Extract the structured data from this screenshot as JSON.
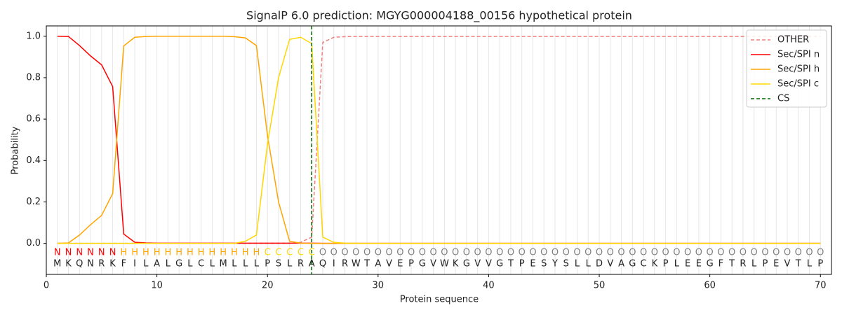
{
  "chart_data": {
    "type": "line",
    "title": "SignalP 6.0 prediction: MGYG000004188_00156 hypothetical protein",
    "xlabel": "Protein sequence",
    "ylabel": "Probability",
    "x": [
      1,
      2,
      3,
      4,
      5,
      6,
      7,
      8,
      9,
      10,
      11,
      12,
      13,
      14,
      15,
      16,
      17,
      18,
      19,
      20,
      21,
      22,
      23,
      24,
      25,
      26,
      27,
      28,
      29,
      30,
      31,
      32,
      33,
      34,
      35,
      36,
      37,
      38,
      39,
      40,
      41,
      42,
      43,
      44,
      45,
      46,
      47,
      48,
      49,
      50,
      51,
      52,
      53,
      54,
      55,
      56,
      57,
      58,
      59,
      60,
      61,
      62,
      63,
      64,
      65,
      66,
      67,
      68,
      69,
      70
    ],
    "sequence": [
      "M",
      "K",
      "Q",
      "N",
      "R",
      "K",
      "F",
      "I",
      "L",
      "A",
      "L",
      "G",
      "L",
      "C",
      "L",
      "M",
      "L",
      "L",
      "L",
      "P",
      "S",
      "L",
      "R",
      "A",
      "Q",
      "I",
      "R",
      "W",
      "T",
      "A",
      "V",
      "E",
      "P",
      "G",
      "V",
      "W",
      "K",
      "G",
      "V",
      "V",
      "G",
      "T",
      "P",
      "E",
      "S",
      "Y",
      "S",
      "L",
      "L",
      "D",
      "V",
      "A",
      "G",
      "C",
      "K",
      "P",
      "L",
      "E",
      "E",
      "G",
      "F",
      "T",
      "R",
      "L",
      "P",
      "E",
      "V",
      "T",
      "L",
      "P"
    ],
    "region_labels": [
      "N",
      "N",
      "N",
      "N",
      "N",
      "N",
      "H",
      "H",
      "H",
      "H",
      "H",
      "H",
      "H",
      "H",
      "H",
      "H",
      "H",
      "H",
      "H",
      "C",
      "C",
      "C",
      "C",
      "C",
      "O",
      "O",
      "O",
      "O",
      "O",
      "O",
      "O",
      "O",
      "O",
      "O",
      "O",
      "O",
      "O",
      "O",
      "O",
      "O",
      "O",
      "O",
      "O",
      "O",
      "O",
      "O",
      "O",
      "O",
      "O",
      "O",
      "O",
      "O",
      "O",
      "O",
      "O",
      "O",
      "O",
      "O",
      "O",
      "O",
      "O",
      "O",
      "O",
      "O",
      "O",
      "O",
      "O",
      "O",
      "O",
      "O"
    ],
    "label_colors": {
      "N": "#ff0000",
      "H": "#ffa500",
      "C": "#ffd700",
      "O": "#808080"
    },
    "series": [
      {
        "name": "OTHER",
        "color": "#f08080",
        "dash": true,
        "values": [
          0,
          0,
          0,
          0,
          0,
          0,
          0,
          0,
          0,
          0,
          0,
          0,
          0,
          0,
          0,
          0,
          0,
          0,
          0,
          0,
          0,
          0,
          0.005,
          0.03,
          0.97,
          0.995,
          0.998,
          0.999,
          0.999,
          0.999,
          0.999,
          0.999,
          0.999,
          0.999,
          0.999,
          0.999,
          0.999,
          0.999,
          0.999,
          0.999,
          0.999,
          0.999,
          0.999,
          0.999,
          0.999,
          0.999,
          0.999,
          0.999,
          0.999,
          0.999,
          0.999,
          0.999,
          0.999,
          0.999,
          0.999,
          0.999,
          0.999,
          0.999,
          0.999,
          0.999,
          0.999,
          0.999,
          0.999,
          0.999,
          0.999,
          0.999,
          0.999,
          0.999,
          0.999,
          0.999
        ]
      },
      {
        "name": "Sec/SPI n",
        "color": "#ff0000",
        "values": [
          1.0,
          0.999,
          0.955,
          0.905,
          0.862,
          0.757,
          0.045,
          0.005,
          0.002,
          0.001,
          0.001,
          0.001,
          0.001,
          0.001,
          0.001,
          0.001,
          0.001,
          0.001,
          0.001,
          0.001,
          0.001,
          0.001,
          0.001,
          0.001,
          0,
          0,
          0,
          0,
          0,
          0,
          0,
          0,
          0,
          0,
          0,
          0,
          0,
          0,
          0,
          0,
          0,
          0,
          0,
          0,
          0,
          0,
          0,
          0,
          0,
          0,
          0,
          0,
          0,
          0,
          0,
          0,
          0,
          0,
          0,
          0,
          0,
          0,
          0,
          0,
          0,
          0,
          0,
          0,
          0,
          0
        ]
      },
      {
        "name": "Sec/SPI h",
        "color": "#ffa500",
        "values": [
          0,
          0.002,
          0.04,
          0.09,
          0.135,
          0.24,
          0.953,
          0.995,
          0.999,
          1,
          1,
          1,
          1,
          1,
          1,
          1,
          0.998,
          0.992,
          0.955,
          0.52,
          0.2,
          0.01,
          0.001,
          0,
          0,
          0,
          0,
          0,
          0,
          0,
          0,
          0,
          0,
          0,
          0,
          0,
          0,
          0,
          0,
          0,
          0,
          0,
          0,
          0,
          0,
          0,
          0,
          0,
          0,
          0,
          0,
          0,
          0,
          0,
          0,
          0,
          0,
          0,
          0,
          0,
          0,
          0,
          0,
          0,
          0,
          0,
          0,
          0,
          0,
          0
        ]
      },
      {
        "name": "Sec/SPI c",
        "color": "#ffd700",
        "values": [
          0,
          0,
          0,
          0,
          0,
          0,
          0,
          0,
          0,
          0,
          0,
          0,
          0,
          0,
          0,
          0,
          0,
          0.01,
          0.04,
          0.48,
          0.8,
          0.985,
          0.995,
          0.965,
          0.03,
          0.005,
          0.001,
          0,
          0,
          0,
          0,
          0,
          0,
          0,
          0,
          0,
          0,
          0,
          0,
          0,
          0,
          0,
          0,
          0,
          0,
          0,
          0,
          0,
          0,
          0,
          0,
          0,
          0,
          0,
          0,
          0,
          0,
          0,
          0,
          0,
          0,
          0,
          0,
          0,
          0,
          0,
          0,
          0,
          0,
          0
        ]
      }
    ],
    "cs": {
      "name": "CS",
      "color": "#006400",
      "x": 24
    },
    "xlim": [
      0,
      71
    ],
    "ylim": [
      -0.15,
      1.05
    ],
    "xticks": [
      0,
      10,
      20,
      30,
      40,
      50,
      60,
      70
    ],
    "yticks": [
      {
        "value": 0,
        "label": "0.0"
      },
      {
        "value": 0.2,
        "label": "0.2"
      },
      {
        "value": 0.4,
        "label": "0.4"
      },
      {
        "value": 0.6,
        "label": "0.6"
      },
      {
        "value": 0.8,
        "label": "0.8"
      },
      {
        "value": 1,
        "label": "1.0"
      }
    ],
    "legend": "upper right"
  }
}
